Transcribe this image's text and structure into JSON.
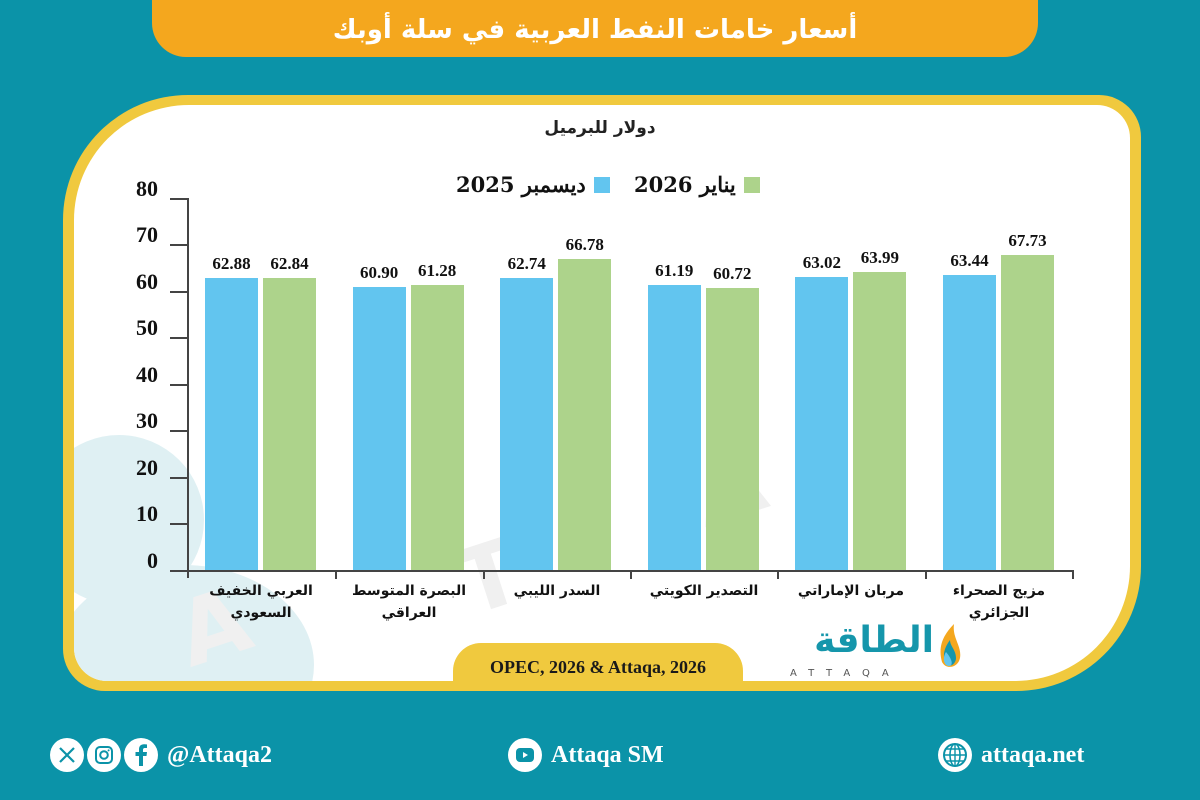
{
  "header": {
    "title": "أسعار خامات النفط العربية في سلة أوبك"
  },
  "chart_data": {
    "type": "bar",
    "title": "أسعار خامات النفط العربية في سلة أوبك",
    "ylabel": "دولار للبرميل",
    "xlabel": "",
    "ylim": [
      0,
      80
    ],
    "yticks": [
      0,
      10,
      20,
      30,
      40,
      50,
      60,
      70,
      80
    ],
    "grid": false,
    "legend_position": "top",
    "categories": [
      "العربي الخفيف السعودي",
      "البصرة المتوسط العراقي",
      "السدر الليبي",
      "التصدير الكويتي",
      "مربان الإماراتي",
      "مزيج الصحراء الجزائري"
    ],
    "series": [
      {
        "name": "ديسمبر 2025",
        "color": "#62c5ef",
        "values": [
          62.88,
          60.9,
          62.74,
          61.19,
          63.02,
          63.44
        ]
      },
      {
        "name": "يناير 2026",
        "color": "#add38b",
        "values": [
          62.84,
          61.28,
          66.78,
          60.72,
          63.99,
          67.73
        ]
      }
    ]
  },
  "chart": {
    "unit_label": "دولار للبرميل",
    "legend": [
      {
        "label": "ديسمبر 2025",
        "color": "#62c5ef"
      },
      {
        "label": "يناير 2026",
        "color": "#add38b"
      }
    ],
    "y_labels": [
      "80",
      "70",
      "60",
      "50",
      "40",
      "30",
      "20",
      "10",
      "0"
    ],
    "categories": [
      {
        "line1": "العربي الخفيف",
        "line2": "السعودي",
        "dec": "62.88",
        "jan": "62.84"
      },
      {
        "line1": "البصرة المتوسط",
        "line2": "العراقي",
        "dec": "60.90",
        "jan": "61.28"
      },
      {
        "line1": "السدر الليبي",
        "line2": "",
        "dec": "62.74",
        "jan": "66.78"
      },
      {
        "line1": "التصدير الكويتي",
        "line2": "",
        "dec": "61.19",
        "jan": "60.72"
      },
      {
        "line1": "مربان الإماراتي",
        "line2": "",
        "dec": "63.02",
        "jan": "63.99"
      },
      {
        "line1": "مزيج الصحراء",
        "line2": "الجزائري",
        "dec": "63.44",
        "jan": "67.73"
      }
    ]
  },
  "source": "OPEC, 2026 & Attaqa, 2026",
  "logo": {
    "arabic": "الطاقة",
    "latin": "ATTAQA"
  },
  "footer": {
    "social_handle": "@Attaqa2",
    "youtube": "Attaqa SM",
    "website": "attaqa.net"
  },
  "colors": {
    "background": "#0b93a8",
    "title_bar": "#f4a71e",
    "card_border": "#f0c93e",
    "dec_bar": "#62c5ef",
    "jan_bar": "#add38b"
  }
}
